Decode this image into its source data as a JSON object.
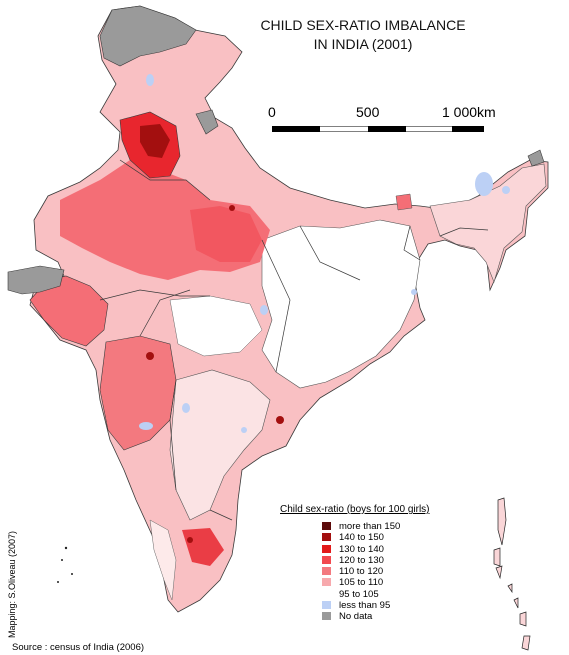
{
  "title": {
    "line1": "CHILD SEX-RATIO IMBALANCE",
    "line2": "IN INDIA (2001)"
  },
  "scale": {
    "tick_0": "0",
    "tick_mid": "500",
    "tick_end": "1 000km"
  },
  "legend": {
    "title": "Child sex-ratio (boys for 100 girls)",
    "items": [
      {
        "label": "more than 150",
        "color": "#5c0a0a"
      },
      {
        "label": "140 to 150",
        "color": "#a30f0f"
      },
      {
        "label": "130 to 140",
        "color": "#e21a1a"
      },
      {
        "label": "120 to 130",
        "color": "#f2494f"
      },
      {
        "label": "110 to 120",
        "color": "#f3797f"
      },
      {
        "label": "105 to 110",
        "color": "#f7a9ad"
      },
      {
        "label": "95 to 105",
        "color": "#ffffff"
      },
      {
        "label": "less than 95",
        "color": "#bcd0f5"
      },
      {
        "label": "No data",
        "color": "#9a9a9a"
      }
    ]
  },
  "credit": "Mapping: S.Oliveau (2007)",
  "source": "Source : census of India (2006)",
  "colors": {
    "border": "#3a3a3a",
    "background": "#ffffff"
  }
}
